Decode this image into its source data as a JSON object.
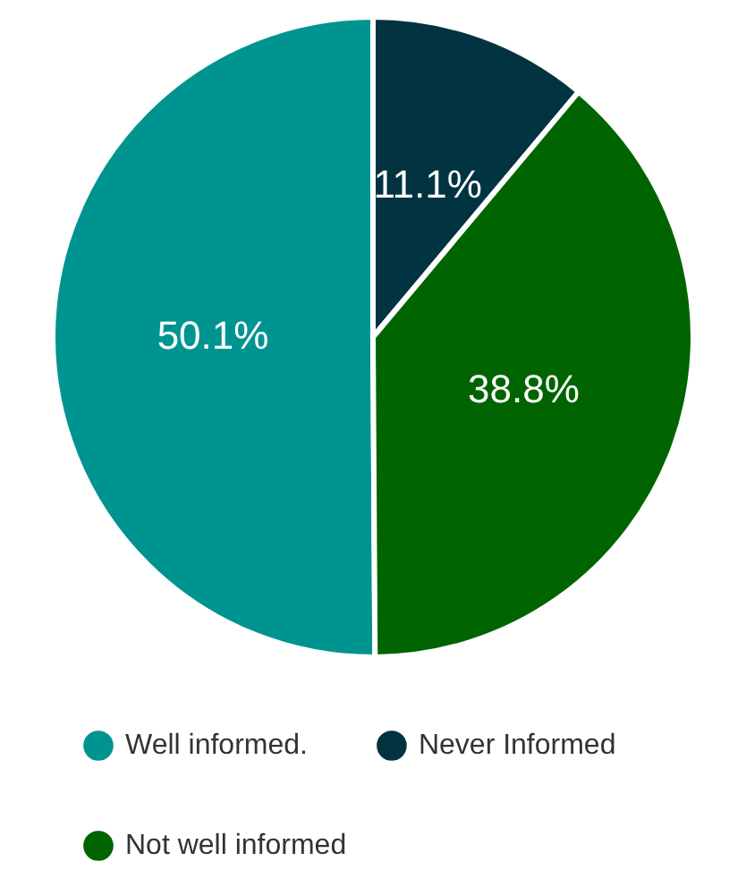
{
  "chart_data": {
    "type": "pie",
    "categories": [
      "Well informed.",
      "Never Informed",
      "Not well informed"
    ],
    "values": [
      50.1,
      11.1,
      38.8
    ],
    "colors": [
      "#009490",
      "#023341",
      "#006400"
    ],
    "value_labels": [
      "50.1%",
      "11.1%",
      "38.8%"
    ],
    "legend": "bottom"
  }
}
